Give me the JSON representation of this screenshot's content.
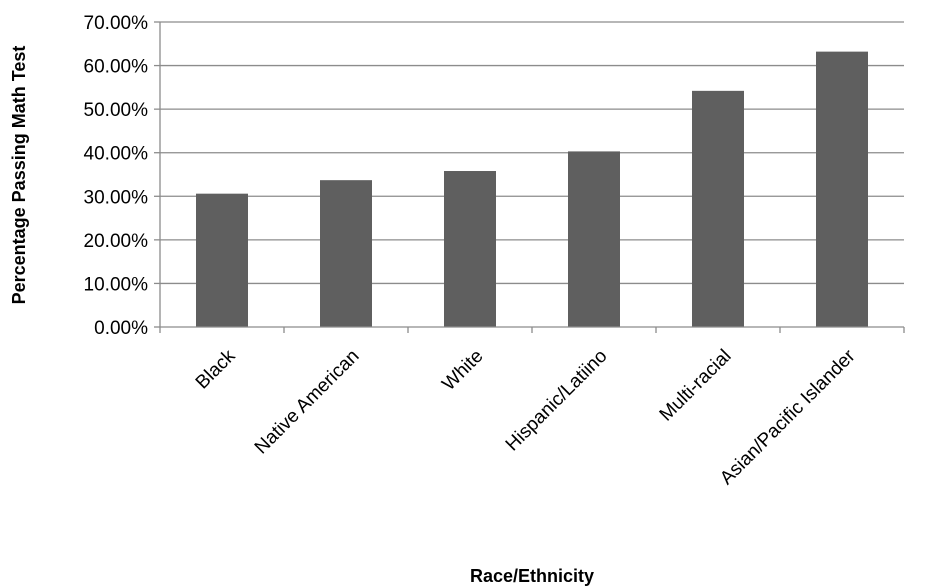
{
  "chart_data": {
    "type": "bar",
    "title": "",
    "xlabel": "Race/Ethnicity",
    "ylabel": "Percentage Passing Math Test",
    "categories": [
      "Black",
      "Native American",
      "White",
      "Hispanic/Latiino",
      "Multi-racial",
      "Asian/Pacific Islander"
    ],
    "values": [
      30.6,
      33.7,
      35.8,
      40.3,
      54.2,
      63.2
    ],
    "ylim": [
      0,
      70
    ],
    "yticks": [
      0,
      10,
      20,
      30,
      40,
      50,
      60,
      70
    ],
    "ytick_labels": [
      "0.00%",
      "10.00%",
      "20.00%",
      "30.00%",
      "40.00%",
      "50.00%",
      "60.00%",
      "70.00%"
    ],
    "grid": true,
    "legend": "none",
    "bar_color": "#5f5f5f",
    "grid_color": "#8c8c8c",
    "axis_color": "#8c8c8c"
  }
}
